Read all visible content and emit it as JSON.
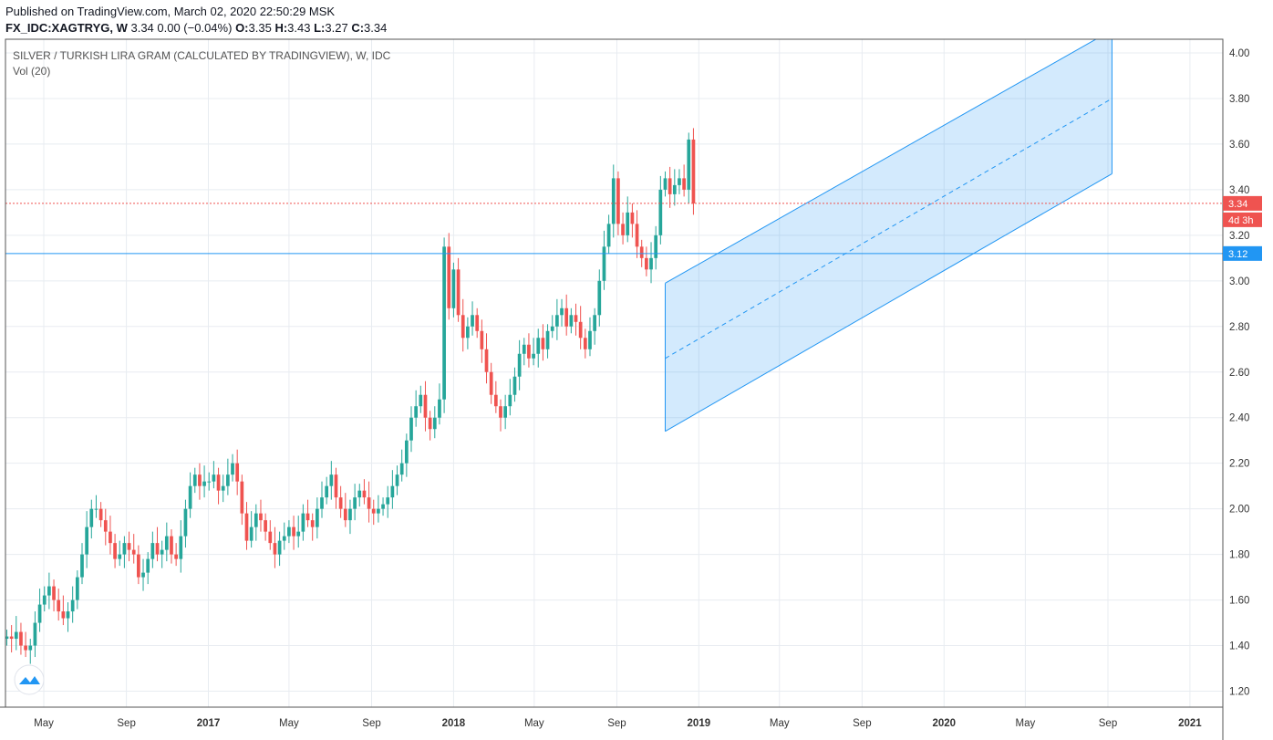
{
  "header": {
    "published": "Published on TradingView.com, March 02, 2020 22:50:29 MSK",
    "symbol": "FX_IDC:XAGTRYG, W",
    "quote": "3.34 0.00 (−0.04%)",
    "open_label": "O:",
    "open": "3.35",
    "high_label": "H:",
    "high": "3.43",
    "low_label": "L:",
    "low": "3.27",
    "close_label": "C:",
    "close": "3.34"
  },
  "legend": {
    "title": "SILVER / TURKISH LIRA GRAM (CALCULATED BY TRADINGVIEW), W, IDC",
    "indicator": "Vol (20)"
  },
  "colors": {
    "up": "#26a69a",
    "down": "#ef5350",
    "grid": "#e8ecf1",
    "channel": "#2196f3",
    "channel_fill": "rgba(33,150,243,0.2)",
    "price_line": "#ef5350",
    "level_line": "#2196f3"
  },
  "chart_data": {
    "type": "candlestick",
    "y_axis": {
      "ticks": [
        "1.20",
        "1.40",
        "1.60",
        "1.80",
        "2.00",
        "2.20",
        "2.40",
        "2.60",
        "2.80",
        "3.00",
        "3.20",
        "3.40",
        "3.60",
        "3.80",
        "4.00"
      ],
      "range": [
        1.13,
        4.06
      ]
    },
    "x_axis": {
      "ticks": [
        {
          "label": "May",
          "date": "2016-05-01",
          "year": false
        },
        {
          "label": "Sep",
          "date": "2016-09-01",
          "year": false
        },
        {
          "label": "2017",
          "date": "2017-01-01",
          "year": true
        },
        {
          "label": "May",
          "date": "2017-05-01",
          "year": false
        },
        {
          "label": "Sep",
          "date": "2017-09-01",
          "year": false
        },
        {
          "label": "2018",
          "date": "2018-01-01",
          "year": true
        },
        {
          "label": "May",
          "date": "2018-05-01",
          "year": false
        },
        {
          "label": "Sep",
          "date": "2018-09-01",
          "year": false
        },
        {
          "label": "2019",
          "date": "2019-01-01",
          "year": true
        },
        {
          "label": "May",
          "date": "2019-05-01",
          "year": false
        },
        {
          "label": "Sep",
          "date": "2019-09-01",
          "year": false
        },
        {
          "label": "2020",
          "date": "2020-01-01",
          "year": true
        },
        {
          "label": "May",
          "date": "2020-05-01",
          "year": false
        },
        {
          "label": "Sep",
          "date": "2020-09-01",
          "year": false
        },
        {
          "label": "2021",
          "date": "2021-01-01",
          "year": true
        }
      ],
      "range": [
        "2016-03-05",
        "2021-02-19"
      ]
    },
    "bars_start": "2016-03-07",
    "bar_interval": "W",
    "closes": [
      1.44,
      1.43,
      1.46,
      1.4,
      1.38,
      1.4,
      1.5,
      1.58,
      1.62,
      1.66,
      1.6,
      1.55,
      1.52,
      1.55,
      1.6,
      1.7,
      1.8,
      1.92,
      2.0,
      2.0,
      1.95,
      1.9,
      1.85,
      1.78,
      1.8,
      1.85,
      1.82,
      1.8,
      1.7,
      1.72,
      1.78,
      1.85,
      1.8,
      1.82,
      1.88,
      1.8,
      1.78,
      1.88,
      2.0,
      2.1,
      2.15,
      2.1,
      2.12,
      2.12,
      2.15,
      2.08,
      2.1,
      2.15,
      2.2,
      2.12,
      1.98,
      1.86,
      1.92,
      1.98,
      1.95,
      1.9,
      1.85,
      1.8,
      1.86,
      1.88,
      1.92,
      1.88,
      1.9,
      1.98,
      1.95,
      1.92,
      2.0,
      2.05,
      2.1,
      2.15,
      2.05,
      2.0,
      1.95,
      2.0,
      2.05,
      2.08,
      2.05,
      2.0,
      1.98,
      2.0,
      2.02,
      2.05,
      2.1,
      2.15,
      2.2,
      2.3,
      2.4,
      2.45,
      2.5,
      2.4,
      2.35,
      2.4,
      2.48,
      3.15,
      2.88,
      3.05,
      2.85,
      2.75,
      2.8,
      2.85,
      2.78,
      2.7,
      2.6,
      2.5,
      2.45,
      2.4,
      2.45,
      2.5,
      2.58,
      2.68,
      2.72,
      2.66,
      2.68,
      2.75,
      2.7,
      2.78,
      2.8,
      2.85,
      2.88,
      2.8,
      2.85,
      2.82,
      2.75,
      2.7,
      2.78,
      2.85,
      3.0,
      3.15,
      3.25,
      3.45,
      3.25,
      3.2,
      3.3,
      3.25,
      3.15,
      3.1,
      3.05,
      3.1,
      3.2,
      3.4,
      3.45,
      3.38,
      3.42,
      3.45,
      3.4,
      3.62,
      3.34
    ],
    "channel": {
      "upper_start": [
        "2018-11-12",
        2.99
      ],
      "upper_end": [
        "2020-09-07",
        4.1
      ],
      "lower_start": [
        "2018-11-12",
        2.34
      ],
      "lower_end": [
        "2020-09-07",
        3.47
      ],
      "middle_start": [
        "2018-11-12",
        2.66
      ],
      "middle_end": [
        "2020-09-07",
        3.8
      ]
    },
    "price_line": 3.34,
    "level_line": 3.12,
    "labels": {
      "price_badge": "3.34",
      "countdown_badge": "4d 3h",
      "level_badge": "3.12"
    }
  }
}
